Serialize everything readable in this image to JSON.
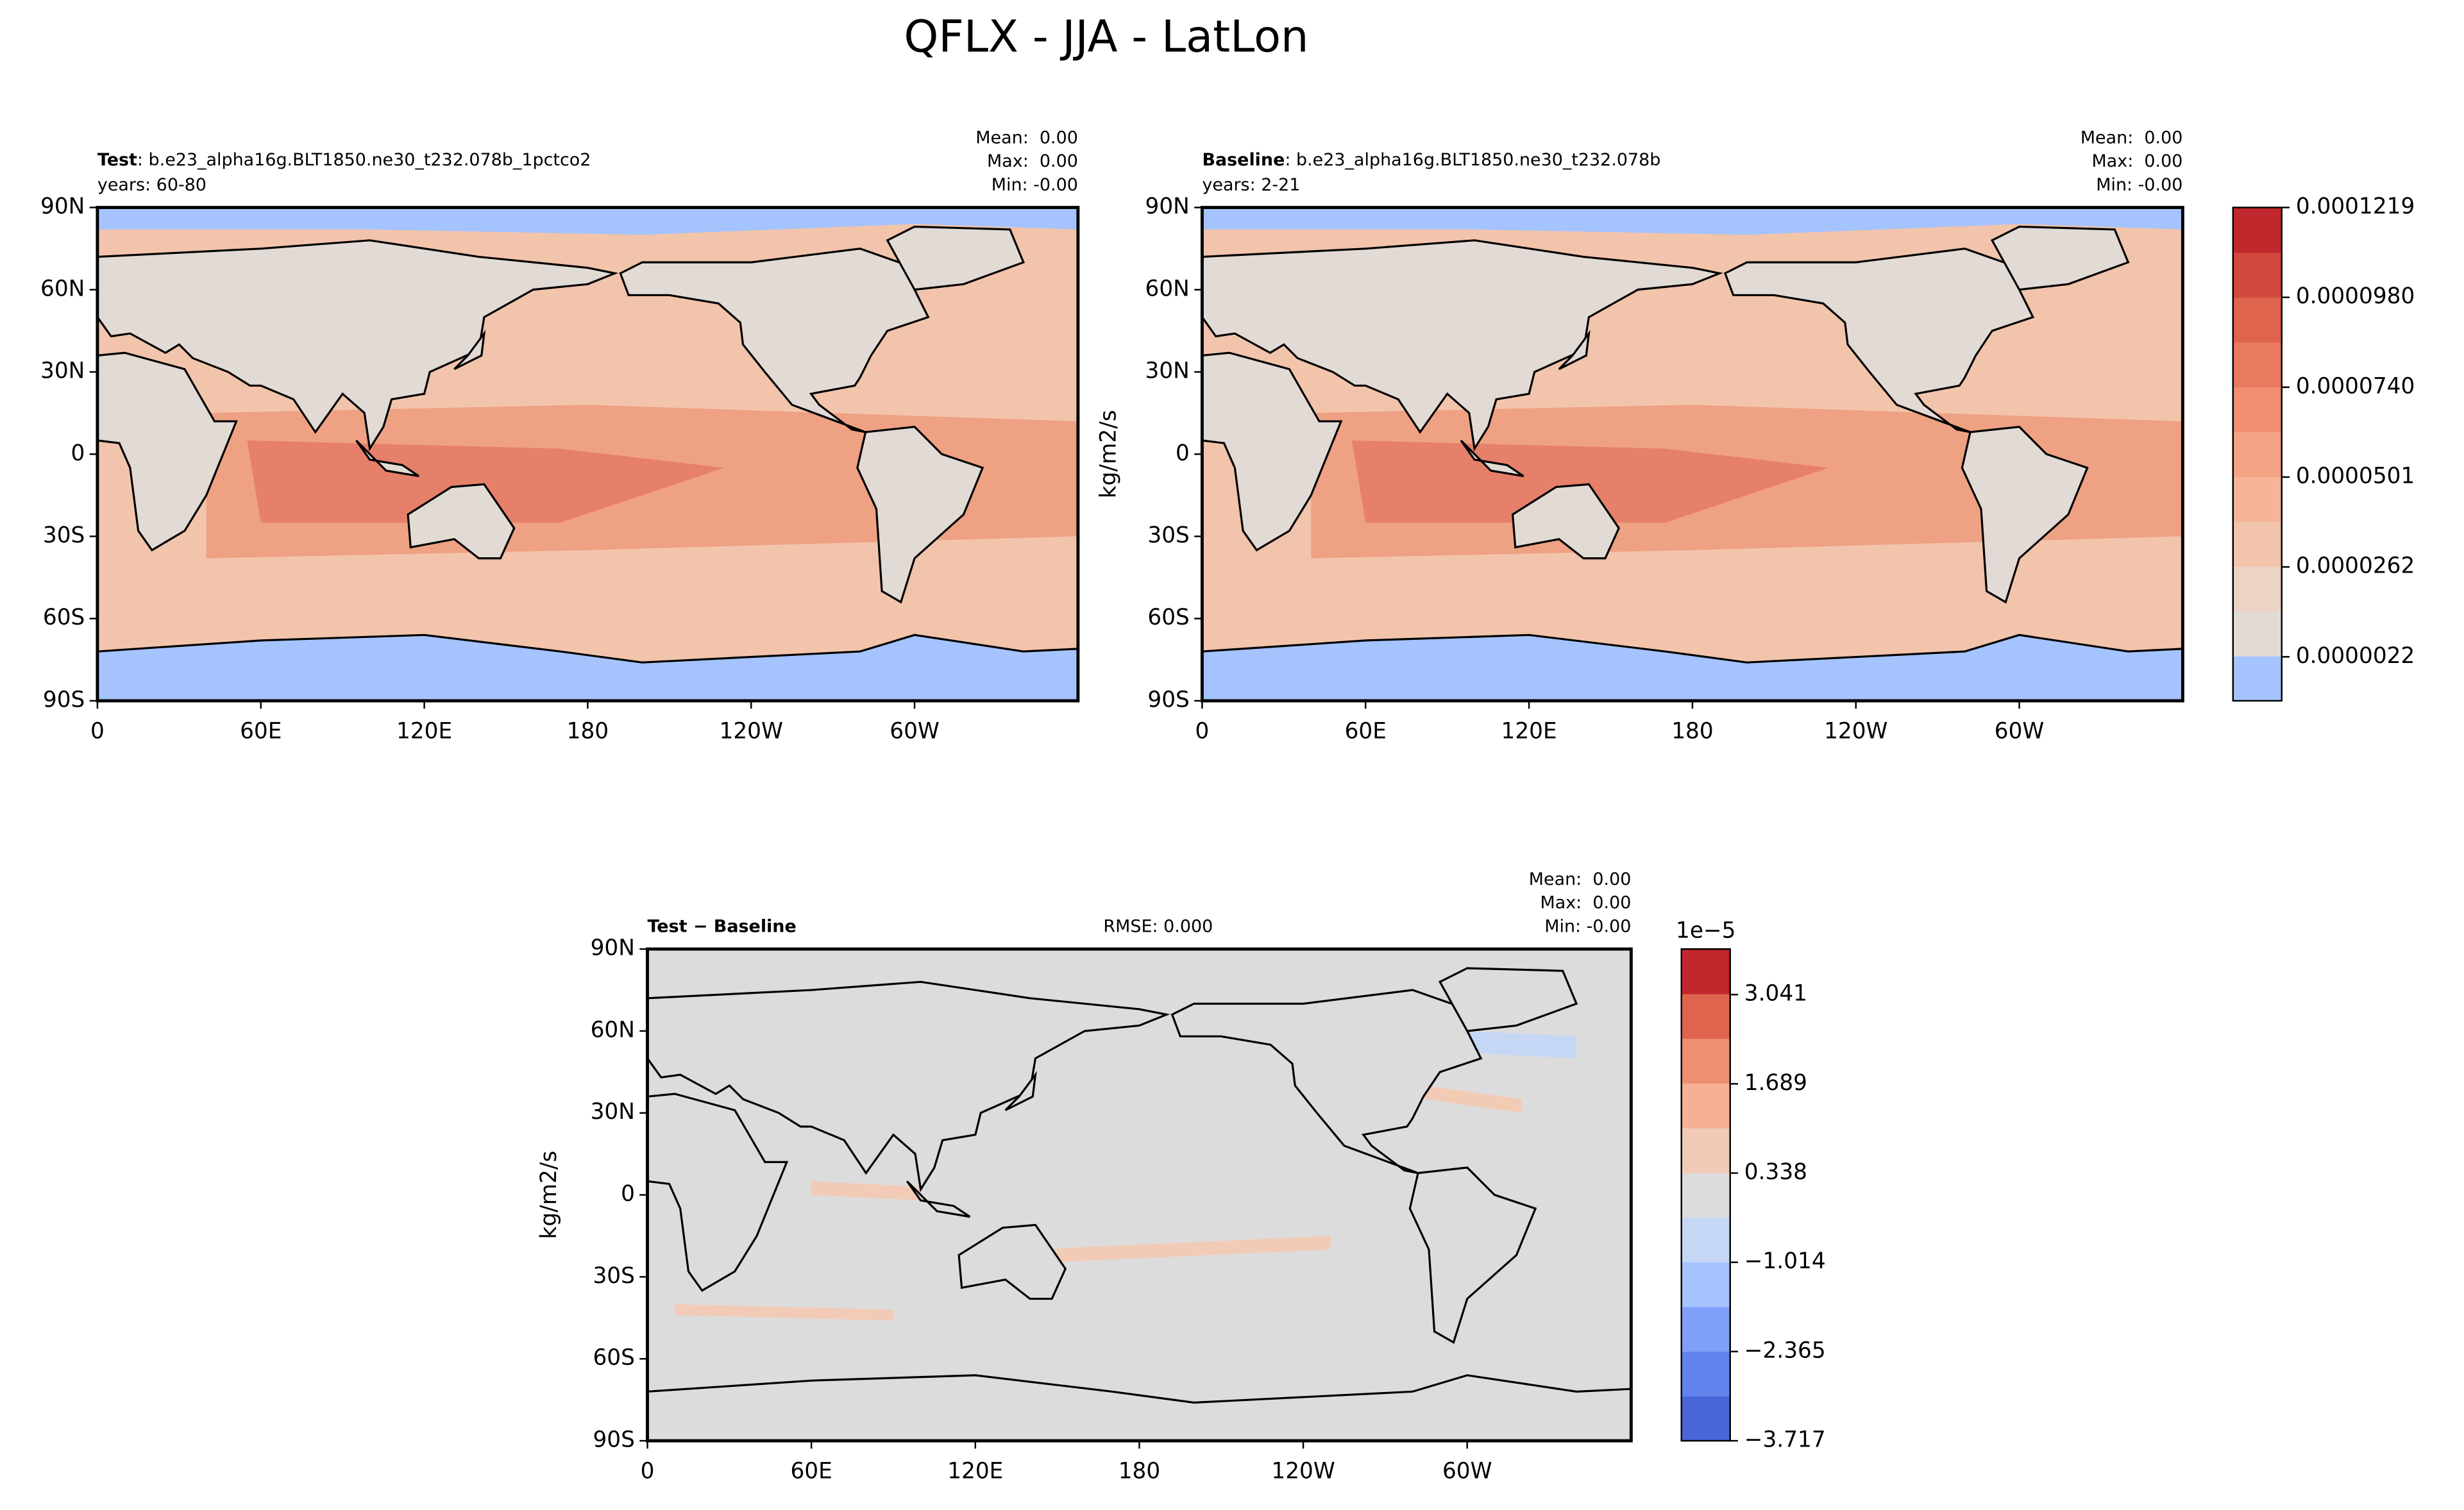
{
  "title": "QFLX - JJA - LatLon",
  "panels": [
    {
      "name": "Test",
      "subtitle": ": b.e23_alpha16g.BLT1850.ne30_t232.078b_1pctco2",
      "years": "years: 60-80",
      "stats": [
        "Mean:  0.00",
        "Max:  0.00",
        "Min: -0.00"
      ],
      "lat_ticks": [
        "90N",
        "60N",
        "30N",
        "0",
        "30S",
        "60S",
        "90S"
      ],
      "lon_ticks": [
        "0",
        "60E",
        "120E",
        "180",
        "120W",
        "60W"
      ]
    },
    {
      "name": "Baseline",
      "subtitle": ": b.e23_alpha16g.BLT1850.ne30_t232.078b",
      "years": "years: 2-21",
      "stats": [
        "Mean:  0.00",
        "Max:  0.00",
        "Min: -0.00"
      ],
      "ylabel": "kg/m2/s",
      "lat_ticks": [
        "90N",
        "60N",
        "30N",
        "0",
        "30S",
        "60S",
        "90S"
      ],
      "lon_ticks": [
        "0",
        "60E",
        "120E",
        "180",
        "120W",
        "60W"
      ]
    },
    {
      "name": "Test − Baseline",
      "rmse": "RMSE: 0.000",
      "stats": [
        "Mean:  0.00",
        "Max:  0.00",
        "Min: -0.00"
      ],
      "ylabel": "kg/m2/s",
      "lat_ticks": [
        "90N",
        "60N",
        "30N",
        "0",
        "30S",
        "60S",
        "90S"
      ],
      "lon_ticks": [
        "0",
        "60E",
        "120E",
        "180",
        "120W",
        "60W"
      ]
    }
  ],
  "colorbars": [
    {
      "ticks": [
        "0.0000022",
        "0.0000262",
        "0.0000501",
        "0.0000740",
        "0.0000980",
        "0.0001219"
      ],
      "colors": [
        "#a5c3fe",
        "#e2dad5",
        "#ecd3c6",
        "#f2c4ab",
        "#f5b498",
        "#f4a385",
        "#f08f72",
        "#e97a5f",
        "#df634d",
        "#d1493c",
        "#c0282d"
      ]
    },
    {
      "offset": "1e−5",
      "ticks": [
        "−3.717",
        "−2.365",
        "−1.014",
        "0.338",
        "1.689",
        "3.041"
      ],
      "colors": [
        "#4a65d8",
        "#6283ee",
        "#7f9ff8",
        "#a5c3fe",
        "#c6d7f5",
        "#dcdcdc",
        "#f2cbb7",
        "#f5b096",
        "#ee8f72",
        "#df644e",
        "#c1272d"
      ]
    }
  ]
}
